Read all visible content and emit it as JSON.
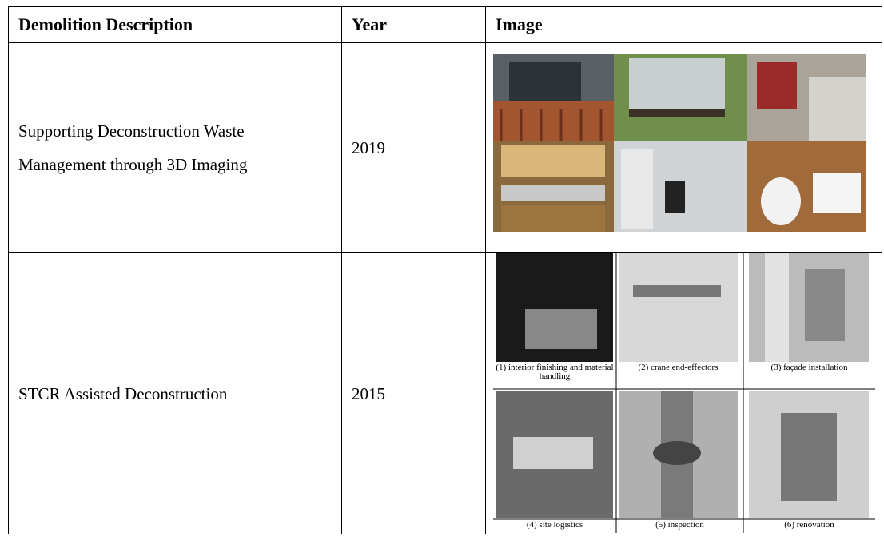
{
  "table": {
    "header": [
      "Demolition Description",
      "Year",
      "Image"
    ],
    "rows": [
      {
        "description": "Supporting Deconstruction Waste Management through 3D Imaging",
        "year": "2019"
      },
      {
        "description": "STCR Assisted Deconstruction",
        "year": "2015",
        "captions": [
          "(1) interior finishing and material handling",
          "(2) crane end-effectors",
          "(3) façade installation",
          "(4) site logistics",
          "(5) inspection",
          "(6) renovation"
        ]
      }
    ]
  }
}
